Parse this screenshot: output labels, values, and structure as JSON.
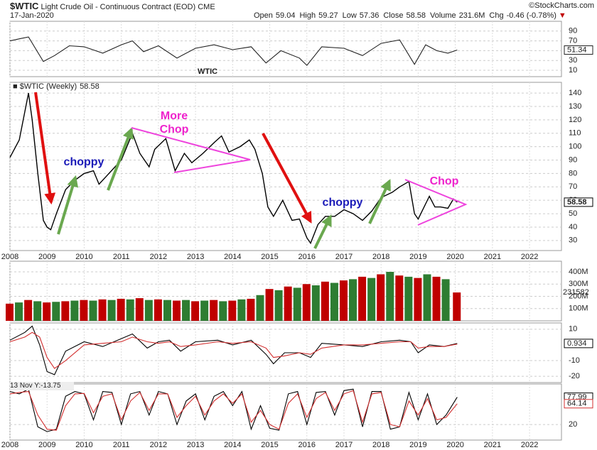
{
  "header": {
    "symbol": "$WTIC",
    "title": "Light Crude Oil - Continuous Contract (EOD) CME",
    "date": "17-Jan-2020",
    "stats": [
      {
        "label": "Open",
        "value": 59.04
      },
      {
        "label": "High",
        "value": 59.27
      },
      {
        "label": "Low",
        "value": 57.36
      },
      {
        "label": "Close",
        "value": 58.58
      },
      {
        "label": "Volume",
        "value": "231.6M"
      },
      {
        "label": "Chg",
        "value": "-0.46 (-0.78%)"
      }
    ],
    "copyright": "©StockCharts.com"
  },
  "chart_data": [
    {
      "type": "line",
      "title": "WTIC",
      "xlim": [
        2008,
        2022.86
      ],
      "ylim": [
        -3,
        110
      ],
      "yticks": [
        10,
        30,
        50,
        70,
        90
      ],
      "grid": true,
      "x": [
        2008,
        2008.3,
        2008.5,
        2008.9,
        2009.2,
        2009.6,
        2010,
        2010.5,
        2011,
        2011.3,
        2011.6,
        2012,
        2012.5,
        2013,
        2013.5,
        2014,
        2014.5,
        2014.9,
        2015.3,
        2015.8,
        2016.0,
        2016.4,
        2017,
        2017.5,
        2018,
        2018.5,
        2018.9,
        2019.2,
        2019.5,
        2019.8,
        2020.05
      ],
      "series": [
        {
          "color": "#222222",
          "values": [
            70,
            75,
            78,
            28,
            40,
            60,
            58,
            45,
            62,
            70,
            48,
            60,
            35,
            55,
            62,
            52,
            58,
            25,
            50,
            35,
            20,
            58,
            55,
            40,
            65,
            72,
            22,
            62,
            50,
            45,
            51.34
          ]
        }
      ]
    },
    {
      "type": "line",
      "xlim": [
        2008,
        2022.86
      ],
      "ylim": [
        22.5,
        148
      ],
      "yticks": [
        30,
        40,
        50,
        60,
        70,
        80,
        90,
        100,
        110,
        120,
        130,
        140
      ],
      "grid": true,
      "xticks": [
        2008,
        2009,
        2010,
        2011,
        2012,
        2013,
        2014,
        2015,
        2016,
        2017,
        2018,
        2019,
        2020,
        2021,
        2022
      ],
      "annotations": [
        "choppy",
        "More Chop",
        "choppy",
        "Chop"
      ],
      "x": [
        2008.0,
        2008.25,
        2008.5,
        2008.6,
        2008.75,
        2008.9,
        2009.0,
        2009.1,
        2009.25,
        2009.5,
        2009.75,
        2010.0,
        2010.25,
        2010.4,
        2010.6,
        2010.8,
        2011.0,
        2011.3,
        2011.5,
        2011.75,
        2011.9,
        2012.2,
        2012.45,
        2012.7,
        2012.9,
        2013.2,
        2013.5,
        2013.7,
        2013.9,
        2014.2,
        2014.45,
        2014.6,
        2014.8,
        2014.95,
        2015.1,
        2015.35,
        2015.6,
        2015.8,
        2016.0,
        2016.1,
        2016.3,
        2016.5,
        2016.75,
        2017.0,
        2017.25,
        2017.5,
        2017.75,
        2018.0,
        2018.3,
        2018.5,
        2018.75,
        2018.9,
        2019.0,
        2019.3,
        2019.45,
        2019.6,
        2019.8,
        2019.95,
        2020.05
      ],
      "series": [
        {
          "name": "$WTIC (Weekly)",
          "color": "#000000",
          "values": [
            92,
            105,
            140,
            120,
            80,
            45,
            40,
            38,
            50,
            68,
            75,
            80,
            82,
            72,
            78,
            84,
            90,
            110,
            95,
            85,
            98,
            106,
            82,
            95,
            88,
            95,
            103,
            108,
            96,
            100,
            105,
            98,
            80,
            55,
            48,
            60,
            45,
            46,
            32,
            28,
            42,
            48,
            48,
            53,
            50,
            45,
            52,
            62,
            66,
            70,
            74,
            50,
            46,
            63,
            55,
            55,
            54,
            61,
            58.58
          ]
        }
      ]
    },
    {
      "type": "bar",
      "xlim": [
        2008,
        2022.86
      ],
      "ylim": [
        0,
        487
      ],
      "grid": true,
      "colors": [
        "#c00000",
        "#2e7d32"
      ],
      "last_label": "231582",
      "yticks": [
        {
          "value": 100,
          "label": "100M"
        },
        {
          "value": 200,
          "label": "200M"
        },
        {
          "value": 300,
          "label": "300M"
        },
        {
          "value": 400,
          "label": "400M"
        }
      ],
      "x": [
        2008,
        2008.25,
        2008.5,
        2008.75,
        2009,
        2009.25,
        2009.5,
        2009.75,
        2010,
        2010.25,
        2010.5,
        2010.75,
        2011,
        2011.25,
        2011.5,
        2011.75,
        2012,
        2012.25,
        2012.5,
        2012.75,
        2013,
        2013.25,
        2013.5,
        2013.75,
        2014,
        2014.25,
        2014.5,
        2014.75,
        2015,
        2015.25,
        2015.5,
        2015.75,
        2016,
        2016.25,
        2016.5,
        2016.75,
        2017,
        2017.25,
        2017.5,
        2017.75,
        2018,
        2018.25,
        2018.5,
        2018.75,
        2019,
        2019.25,
        2019.5,
        2019.75,
        2020.05
      ],
      "values": [
        140,
        150,
        170,
        160,
        150,
        155,
        160,
        165,
        170,
        165,
        175,
        170,
        180,
        175,
        185,
        170,
        175,
        170,
        165,
        170,
        160,
        165,
        170,
        160,
        165,
        175,
        180,
        210,
        260,
        250,
        280,
        270,
        300,
        290,
        320,
        310,
        330,
        340,
        360,
        350,
        380,
        400,
        370,
        360,
        350,
        380,
        360,
        340,
        231.582
      ]
    },
    {
      "type": "line",
      "xlim": [
        2008,
        2022.86
      ],
      "ylim": [
        -24,
        14
      ],
      "yticks": [
        -20,
        -10,
        10
      ],
      "grid": true,
      "x": [
        2008,
        2008.4,
        2008.6,
        2008.8,
        2009.0,
        2009.2,
        2009.5,
        2010,
        2010.5,
        2011,
        2011.3,
        2011.7,
        2012,
        2012.3,
        2012.6,
        2013,
        2013.6,
        2014,
        2014.5,
        2014.9,
        2015.1,
        2015.4,
        2015.8,
        2016.1,
        2016.4,
        2017,
        2017.5,
        2018,
        2018.5,
        2018.8,
        2019.0,
        2019.3,
        2019.7,
        2020.05
      ],
      "series": [
        {
          "color": "#000000",
          "values": [
            3,
            8,
            12,
            0,
            -17,
            -19,
            -4,
            2,
            -1,
            4,
            7,
            -2,
            2,
            3,
            -4,
            2,
            3,
            0,
            3,
            -6,
            -12,
            -5,
            -5,
            -8,
            1,
            0,
            -1,
            2,
            3,
            2,
            -5,
            0,
            -1,
            0.934
          ]
        },
        {
          "color": "#d32f2f",
          "values": [
            2,
            5,
            8,
            5,
            -8,
            -15,
            -10,
            0,
            1,
            2,
            5,
            2,
            1,
            2,
            -1,
            0,
            2,
            1,
            2,
            -2,
            -8,
            -7,
            -5,
            -6,
            -2,
            0,
            0,
            1,
            2,
            2,
            -2,
            -1,
            -1,
            0.5
          ]
        }
      ]
    },
    {
      "type": "line",
      "xlim": [
        2008,
        2022.86
      ],
      "ylim": [
        -13,
        106
      ],
      "yticks": [
        20
      ],
      "grid": true,
      "annotations": [
        "13 Nov Y:-13.75"
      ],
      "x": [
        2008,
        2008.25,
        2008.5,
        2008.75,
        2009,
        2009.25,
        2009.5,
        2009.75,
        2010,
        2010.25,
        2010.5,
        2010.75,
        2011,
        2011.25,
        2011.5,
        2011.75,
        2012,
        2012.25,
        2012.5,
        2012.75,
        2013,
        2013.25,
        2013.5,
        2013.75,
        2014,
        2014.25,
        2014.5,
        2014.75,
        2015,
        2015.25,
        2015.5,
        2015.75,
        2016,
        2016.25,
        2016.5,
        2016.75,
        2017,
        2017.25,
        2017.5,
        2017.75,
        2018,
        2018.25,
        2018.5,
        2018.75,
        2019,
        2019.25,
        2019.5,
        2019.75,
        2020.05
      ],
      "series": [
        {
          "color": "#000000",
          "values": [
            90,
            85,
            95,
            15,
            5,
            10,
            80,
            90,
            85,
            30,
            90,
            88,
            20,
            85,
            90,
            40,
            90,
            85,
            20,
            70,
            85,
            30,
            80,
            90,
            60,
            90,
            10,
            60,
            12,
            8,
            85,
            90,
            20,
            88,
            90,
            40,
            92,
            95,
            15,
            90,
            90,
            10,
            15,
            88,
            30,
            85,
            20,
            40,
            77.99
          ]
        },
        {
          "color": "#d32f2f",
          "values": [
            85,
            88,
            90,
            40,
            10,
            8,
            60,
            85,
            86,
            45,
            80,
            85,
            30,
            70,
            88,
            50,
            85,
            85,
            35,
            60,
            80,
            40,
            70,
            85,
            65,
            85,
            25,
            50,
            20,
            10,
            65,
            85,
            35,
            75,
            88,
            50,
            85,
            92,
            25,
            85,
            88,
            20,
            15,
            70,
            40,
            75,
            30,
            35,
            64.14
          ]
        }
      ]
    }
  ]
}
